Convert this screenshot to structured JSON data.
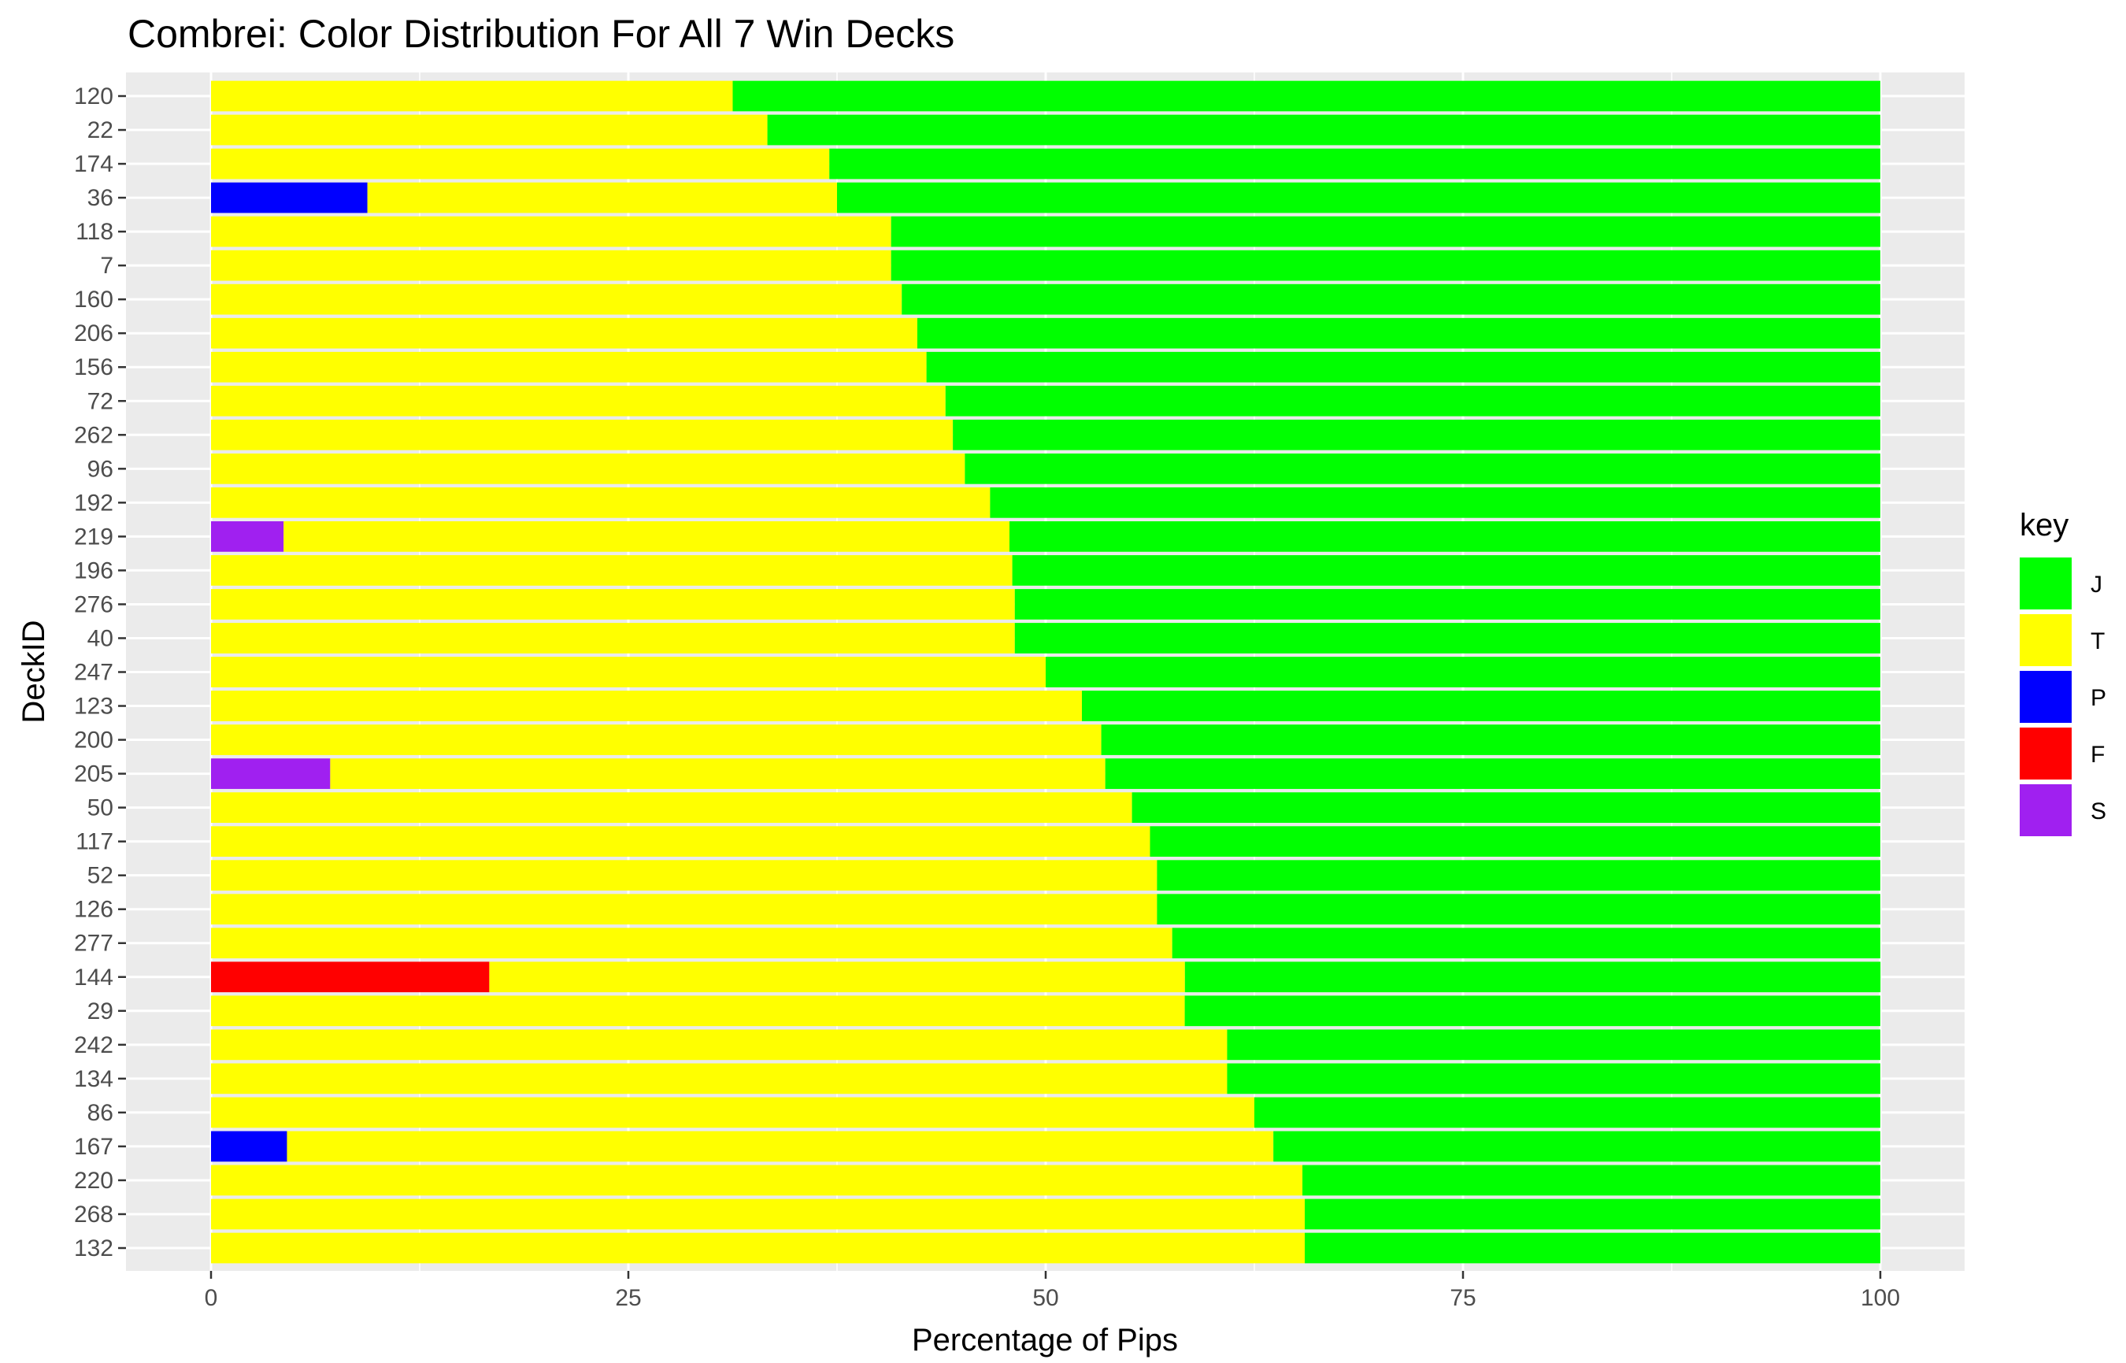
{
  "chart_data": {
    "type": "bar",
    "orientation": "horizontal",
    "stacked": true,
    "title": "Combrei: Color Distribution For All 7 Win Decks",
    "xlabel": "Percentage of Pips",
    "ylabel": "DeckID",
    "xlim": [
      0,
      100
    ],
    "x_ticks": [
      "0",
      "25",
      "50",
      "75",
      "100"
    ],
    "grid": true,
    "legend_position": "right",
    "legend_title": "key",
    "categories": [
      "120",
      "22",
      "174",
      "36",
      "118",
      "7",
      "160",
      "206",
      "156",
      "72",
      "262",
      "96",
      "192",
      "219",
      "196",
      "276",
      "40",
      "247",
      "123",
      "200",
      "205",
      "50",
      "117",
      "52",
      "126",
      "277",
      "144",
      "29",
      "242",
      "134",
      "86",
      "167",
      "220",
      "268",
      "132"
    ],
    "stack_order": [
      "P",
      "F",
      "S",
      "T",
      "J"
    ],
    "series": [
      {
        "name": "J",
        "color": "#00FF00",
        "values": [
          68.75,
          66.67,
          62.96,
          62.5,
          59.26,
          59.26,
          58.62,
          57.69,
          57.14,
          56.0,
          55.56,
          54.84,
          53.33,
          52.17,
          52.0,
          51.85,
          51.85,
          50.0,
          47.83,
          46.67,
          46.43,
          44.83,
          43.75,
          43.33,
          43.33,
          42.42,
          41.67,
          41.67,
          39.13,
          39.13,
          37.5,
          36.36,
          34.62,
          34.48,
          34.48
        ]
      },
      {
        "name": "T",
        "color": "#FFFF00",
        "values": [
          31.25,
          33.33,
          37.04,
          28.13,
          40.74,
          40.74,
          41.38,
          42.31,
          42.86,
          44.0,
          44.44,
          45.16,
          46.67,
          43.48,
          48.0,
          48.15,
          48.15,
          50.0,
          52.17,
          53.33,
          46.43,
          55.17,
          56.25,
          56.67,
          56.67,
          57.58,
          41.67,
          58.33,
          60.87,
          60.87,
          62.5,
          59.09,
          65.38,
          65.52,
          65.52
        ]
      },
      {
        "name": "P",
        "color": "#0000FF",
        "values": [
          0,
          0,
          0,
          9.37,
          0,
          0,
          0,
          0,
          0,
          0,
          0,
          0,
          0,
          0,
          0,
          0,
          0,
          0,
          0,
          0,
          0,
          0,
          0,
          0,
          0,
          0,
          0,
          0,
          0,
          0,
          0,
          4.55,
          0,
          0,
          0
        ]
      },
      {
        "name": "F",
        "color": "#FF0000",
        "values": [
          0,
          0,
          0,
          0,
          0,
          0,
          0,
          0,
          0,
          0,
          0,
          0,
          0,
          0,
          0,
          0,
          0,
          0,
          0,
          0,
          0,
          0,
          0,
          0,
          0,
          0,
          16.67,
          0,
          0,
          0,
          0,
          0,
          0,
          0,
          0
        ]
      },
      {
        "name": "S",
        "color": "#A020F0",
        "values": [
          0,
          0,
          0,
          0,
          0,
          0,
          0,
          0,
          0,
          0,
          0,
          0,
          0,
          4.35,
          0,
          0,
          0,
          0,
          0,
          0,
          7.14,
          0,
          0,
          0,
          0,
          0,
          0,
          0,
          0,
          0,
          0,
          0,
          0,
          0,
          0
        ]
      }
    ],
    "legend_order": [
      "J",
      "T",
      "P",
      "F",
      "S"
    ]
  },
  "colors": {
    "panel_background": "#EBEBEB",
    "gridline": "#FFFFFF"
  }
}
